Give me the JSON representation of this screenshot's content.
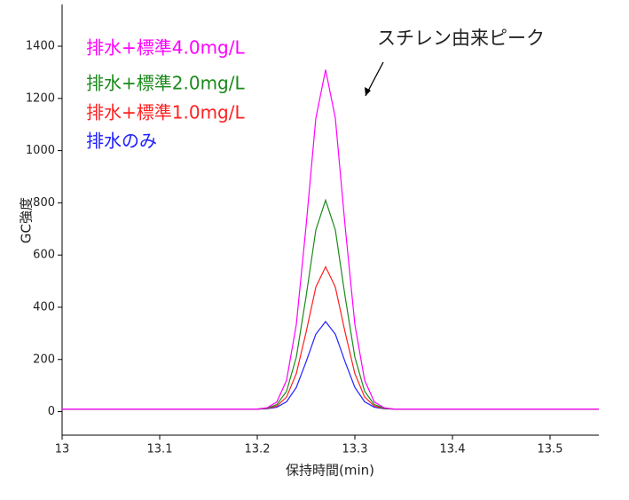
{
  "chart_data": {
    "type": "line",
    "x_label": "保持時間(min)",
    "y_label": "GC強度",
    "annotation": "スチレン由来ピーク",
    "x": [
      13,
      13.2,
      13.21,
      13.22,
      13.23,
      13.24,
      13.25,
      13.26,
      13.27,
      13.28,
      13.29,
      13.3,
      13.31,
      13.32,
      13.33,
      13.34,
      13.55
    ],
    "series": [
      {
        "name": "排水+標準4.0mg/L",
        "color": "#ff00ff",
        "values": [
          10,
          10,
          15,
          37,
          120,
          334,
          711,
          1124,
          1310,
          1124,
          711,
          334,
          120,
          37,
          15,
          10,
          10
        ]
      },
      {
        "name": "排水+標準2.0mg/L",
        "color": "#1a8a1a",
        "values": [
          10,
          10,
          13,
          27,
          78,
          209,
          441,
          696,
          810,
          696,
          441,
          209,
          78,
          27,
          13,
          10,
          10
        ]
      },
      {
        "name": "排水+標準1.0mg/L",
        "color": "#ff2020",
        "values": [
          10,
          10,
          12,
          21,
          56,
          146,
          304,
          477,
          555,
          477,
          304,
          146,
          56,
          21,
          12,
          10,
          10
        ]
      },
      {
        "name": "排水のみ",
        "color": "#2020ff",
        "values": [
          10,
          10,
          11,
          17,
          38,
          93,
          191,
          297,
          345,
          297,
          191,
          93,
          38,
          17,
          11,
          10,
          10
        ]
      }
    ],
    "xlim": [
      13,
      13.55
    ],
    "xticks": [
      13,
      13.1,
      13.2,
      13.3,
      13.4,
      13.5
    ],
    "ylim": [
      -90,
      1560
    ],
    "yticks": [
      0,
      200,
      400,
      600,
      800,
      1000,
      1200,
      1400
    ]
  }
}
